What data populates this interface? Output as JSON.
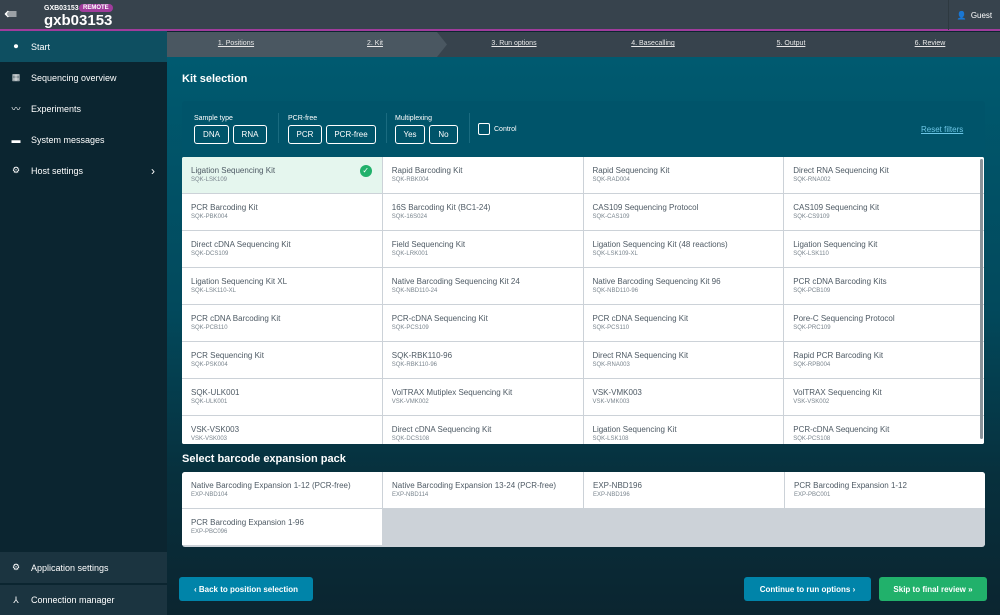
{
  "header": {
    "host_small": "GXB03153",
    "badge": "REMOTE",
    "host": "gxb03153",
    "user": "Guest",
    "accent": "#a03c9c"
  },
  "sidebar": {
    "items": [
      {
        "label": "Start",
        "icon": "play-circle-icon"
      },
      {
        "label": "Sequencing overview",
        "icon": "grid-icon"
      },
      {
        "label": "Experiments",
        "icon": "line-chart-icon"
      },
      {
        "label": "System messages",
        "icon": "message-icon"
      },
      {
        "label": "Host settings",
        "icon": "gear-icon"
      }
    ],
    "bottom": [
      {
        "label": "Application settings",
        "icon": "settings-box-icon"
      },
      {
        "label": "Connection manager",
        "icon": "network-icon"
      }
    ]
  },
  "steps": [
    "1. Positions",
    "2. Kit",
    "3. Run options",
    "4. Basecalling",
    "5. Output",
    "6. Review"
  ],
  "kit_title": "Kit selection",
  "filters": {
    "sample_type": {
      "label": "Sample type",
      "options": [
        "DNA",
        "RNA"
      ]
    },
    "pcr_free": {
      "label": "PCR-free",
      "options": [
        "PCR",
        "PCR-free"
      ]
    },
    "multiplexing": {
      "label": "Multiplexing",
      "options": [
        "Yes",
        "No"
      ]
    },
    "control": "Control",
    "reset": "Reset filters"
  },
  "kits": [
    {
      "name": "Ligation Sequencing Kit",
      "code": "SQK-LSK109",
      "selected": true
    },
    {
      "name": "Rapid Barcoding Kit",
      "code": "SQK-RBK004"
    },
    {
      "name": "Rapid Sequencing Kit",
      "code": "SQK-RAD004"
    },
    {
      "name": "Direct RNA Sequencing Kit",
      "code": "SQK-RNA002"
    },
    {
      "name": "PCR Barcoding Kit",
      "code": "SQK-PBK004"
    },
    {
      "name": "16S Barcoding Kit (BC1-24)",
      "code": "SQK-16S024"
    },
    {
      "name": "CAS109 Sequencing Protocol",
      "code": "SQK-CAS109"
    },
    {
      "name": "CAS109 Sequencing Kit",
      "code": "SQK-CS9109"
    },
    {
      "name": "Direct cDNA Sequencing Kit",
      "code": "SQK-DCS109"
    },
    {
      "name": "Field Sequencing Kit",
      "code": "SQK-LRK001"
    },
    {
      "name": "Ligation Sequencing Kit (48 reactions)",
      "code": "SQK-LSK109-XL"
    },
    {
      "name": "Ligation Sequencing Kit",
      "code": "SQK-LSK110"
    },
    {
      "name": "Ligation Sequencing Kit XL",
      "code": "SQK-LSK110-XL"
    },
    {
      "name": "Native Barcoding Sequencing Kit 24",
      "code": "SQK-NBD110-24"
    },
    {
      "name": "Native Barcoding Sequencing Kit 96",
      "code": "SQK-NBD110-96"
    },
    {
      "name": "PCR cDNA Barcoding Kits",
      "code": "SQK-PCB109"
    },
    {
      "name": "PCR cDNA Barcoding Kit",
      "code": "SQK-PCB110"
    },
    {
      "name": "PCR-cDNA Sequencing Kit",
      "code": "SQK-PCS109"
    },
    {
      "name": "PCR cDNA Sequencing Kit",
      "code": "SQK-PCS110"
    },
    {
      "name": "Pore-C Sequencing Protocol",
      "code": "SQK-PRC109"
    },
    {
      "name": "PCR Sequencing Kit",
      "code": "SQK-PSK004"
    },
    {
      "name": "SQK-RBK110-96",
      "code": "SQK-RBK110-96"
    },
    {
      "name": "Direct RNA Sequencing Kit",
      "code": "SQK-RNA003"
    },
    {
      "name": "Rapid PCR Barcoding Kit",
      "code": "SQK-RPB004"
    },
    {
      "name": "SQK-ULK001",
      "code": "SQK-ULK001"
    },
    {
      "name": "VolTRAX Mutiplex Sequencing Kit",
      "code": "VSK-VMK002"
    },
    {
      "name": "VSK-VMK003",
      "code": "VSK-VMK003"
    },
    {
      "name": "VolTRAX Sequencing Kit",
      "code": "VSK-VSK002"
    },
    {
      "name": "VSK-VSK003",
      "code": "VSK-VSK003"
    },
    {
      "name": "Direct cDNA Sequencing Kit",
      "code": "SQK-DCS108"
    },
    {
      "name": "Ligation Sequencing Kit",
      "code": "SQK-LSK108"
    },
    {
      "name": "PCR-cDNA Sequencing Kit",
      "code": "SQK-PCS108"
    }
  ],
  "barcode_title": "Select barcode expansion pack",
  "barcodes": [
    {
      "name": "Native Barcoding Expansion 1-12 (PCR-free)",
      "code": "EXP-NBD104"
    },
    {
      "name": "Native Barcoding Expansion 13-24 (PCR-free)",
      "code": "EXP-NBD114"
    },
    {
      "name": "EXP-NBD196",
      "code": "EXP-NBD196"
    },
    {
      "name": "PCR Barcoding Expansion 1-12",
      "code": "EXP-PBC001"
    },
    {
      "name": "PCR Barcoding Expansion 1-96",
      "code": "EXP-PBC096"
    }
  ],
  "buttons": {
    "back": "Back to position selection",
    "continue": "Continue to run options",
    "skip": "Skip to final review"
  }
}
